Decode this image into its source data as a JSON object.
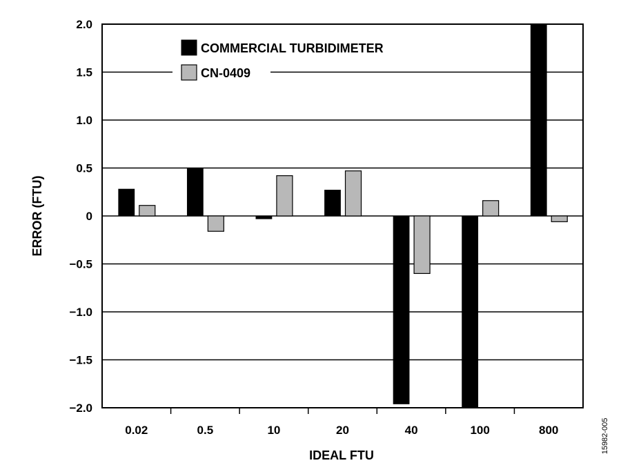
{
  "chart_data": {
    "type": "bar",
    "xlabel": "IDEAL FTU",
    "ylabel": "ERROR (FTU)",
    "categories": [
      "0.02",
      "0.5",
      "10",
      "20",
      "40",
      "100",
      "800"
    ],
    "ylim": [
      -2.0,
      2.0
    ],
    "yticks": [
      "2.0",
      "1.5",
      "1.0",
      "0.5",
      "0",
      "−0.5",
      "−1.0",
      "−1.5",
      "−2.0"
    ],
    "ytick_values": [
      2.0,
      1.5,
      1.0,
      0.5,
      0,
      -0.5,
      -1.0,
      -1.5,
      -2.0
    ],
    "grid": true,
    "legend_position": "top-left",
    "series": [
      {
        "name": "COMMERCIAL TURBIDIMETER",
        "color": "#000000",
        "values": [
          0.28,
          0.5,
          -0.03,
          0.27,
          -1.96,
          -2.0,
          2.0
        ]
      },
      {
        "name": "CN-0409",
        "color": "#b8b8b8",
        "values": [
          0.11,
          -0.16,
          0.42,
          0.47,
          -0.6,
          0.16,
          -0.06
        ]
      }
    ]
  },
  "figure_id": "15982-005"
}
